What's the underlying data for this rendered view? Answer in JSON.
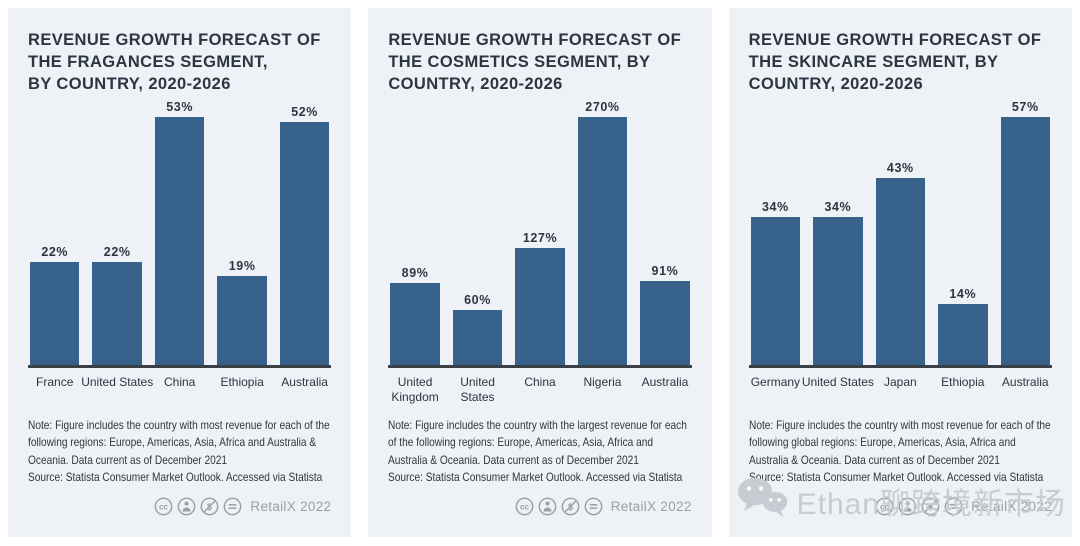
{
  "style": {
    "page_background": "#ffffff",
    "card_background": "#eef1f5",
    "bar_color": "#36618a",
    "text_dark": "#2c3542",
    "license_gray": "#9aa0a7",
    "watermark_gray": "#c7ccd3"
  },
  "chart_data": [
    {
      "type": "bar",
      "title": "REVENUE GROWTH FORECAST OF THE FRAGANCES SEGMENT, BY COUNTRY, 2020-2026",
      "categories": [
        "France",
        "United States",
        "China",
        "Ethiopia",
        "Australia"
      ],
      "values": [
        22,
        22,
        53,
        19,
        52
      ],
      "value_labels": [
        "22%",
        "22%",
        "53%",
        "19%",
        "52%"
      ],
      "unit": "%",
      "bar_color": "#36618a",
      "grid": false,
      "legend": "none",
      "y_axis_visible": false,
      "wrap_labels": false
    },
    {
      "type": "bar",
      "title": "REVENUE GROWTH FORECAST OF THE COSMETICS SEGMENT, BY COUNTRY, 2020-2026",
      "categories": [
        "United Kingdom",
        "United States",
        "China",
        "Nigeria",
        "Australia"
      ],
      "values": [
        89,
        60,
        127,
        270,
        91
      ],
      "value_labels": [
        "89%",
        "60%",
        "127%",
        "270%",
        "91%"
      ],
      "unit": "%",
      "bar_color": "#36618a",
      "grid": false,
      "legend": "none",
      "y_axis_visible": false,
      "wrap_labels": true
    },
    {
      "type": "bar",
      "title": "REVENUE GROWTH FORECAST OF THE SKINCARE SEGMENT, BY COUNTRY, 2020-2026",
      "categories": [
        "Germany",
        "United States",
        "Japan",
        "Ethiopia",
        "Australia"
      ],
      "values": [
        34,
        34,
        43,
        14,
        57
      ],
      "value_labels": [
        "34%",
        "34%",
        "43%",
        "14%",
        "57%"
      ],
      "unit": "%",
      "bar_color": "#36618a",
      "grid": false,
      "legend": "none",
      "y_axis_visible": false,
      "wrap_labels": false
    }
  ],
  "cards": [
    {
      "title_lines": [
        "REVENUE GROWTH FORECAST OF",
        "THE FRAGANCES SEGMENT,",
        "BY COUNTRY, 2020-2026"
      ],
      "note": "Note: Figure includes the country with most revenue for each of the following regions: Europe, Americas, Asia, Africa and Australia & Oceania. Data current as of December 2021",
      "source": "Source: Statista Consumer Market Outlook. Accessed via Statista",
      "license_text": "RetailX 2022"
    },
    {
      "title_lines": [
        "REVENUE GROWTH FORECAST OF",
        "THE COSMETICS SEGMENT, BY",
        "COUNTRY, 2020-2026"
      ],
      "note": "Note: Figure includes the country with the largest revenue for each of the following regions: Europe, Americas, Asia, Africa and Australia & Oceania. Data current as of December 2021",
      "source": "Source: Statista Consumer Market Outlook. Accessed via Statista",
      "license_text": "RetailX 2022"
    },
    {
      "title_lines": [
        "REVENUE GROWTH FORECAST OF",
        "THE SKINCARE SEGMENT, BY",
        "COUNTRY, 2020-2026"
      ],
      "note": "Note: Figure includes the country with most revenue for each of the following global regions: Europe, Americas, Asia, Africa and Australia & Oceania. Data current as of December 2021",
      "source": "Source: Statista Consumer Market Outlook. Accessed via Statista",
      "license_text": "RetailX 2022"
    }
  ],
  "watermark": {
    "text": "Ethan聊跨境新市场"
  }
}
